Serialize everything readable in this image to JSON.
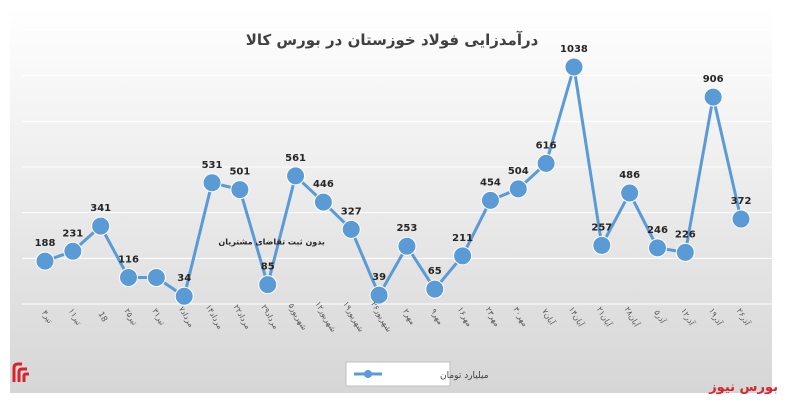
{
  "chart_data": {
    "type": "line",
    "title": "درآمدزایی فولاد خوزستان در بورس کالا",
    "xlabel": "",
    "ylabel": "",
    "ylim": [
      0,
      1200
    ],
    "grid": true,
    "legend_position": "bottom",
    "categories": [
      "۴تیر",
      "۱۱تیر",
      "18",
      "۲۵تیر",
      "۳۱تیر",
      "۷مرداد",
      "۱۴مرداد",
      "۲۲مرداد",
      "۲۹مرداد",
      "۵شهریور",
      "۱۲شهریور",
      "۱۹شهریور",
      "۲۶شهریور",
      "۲مهر",
      "۹مهر",
      "۱۶مهر",
      "۲۳مهر",
      "۳۰مهر",
      "۷آبان",
      "۱۴آبان",
      "۲۱آبان",
      "۲۸آبان",
      "۵آذر",
      "۱۲آذر",
      "۱۹آذر",
      "۲۶آذر"
    ],
    "series": [
      {
        "name": "میلیارد تومان",
        "color": "#5b9bd5",
        "values": [
          188,
          231,
          341,
          116,
          116,
          34,
          531,
          501,
          85,
          561,
          446,
          327,
          39,
          253,
          65,
          211,
          454,
          504,
          616,
          1038,
          257,
          486,
          246,
          226,
          906,
          372
        ]
      }
    ],
    "data_labels": [
      "188",
      "231",
      "341",
      "116",
      "",
      "34",
      "531",
      "501",
      "85",
      "561",
      "446",
      "327",
      "39",
      "253",
      "65",
      "211",
      "454",
      "504",
      "616",
      "1038",
      "257",
      "486",
      "246",
      "226",
      "906",
      "372"
    ],
    "annotations": [
      {
        "text": "بدون ثبت تقاضای مشتریان",
        "point_index": 4
      }
    ]
  },
  "branding": {
    "site_name": "بورس نیوز",
    "brand_color": "#d9232d"
  }
}
